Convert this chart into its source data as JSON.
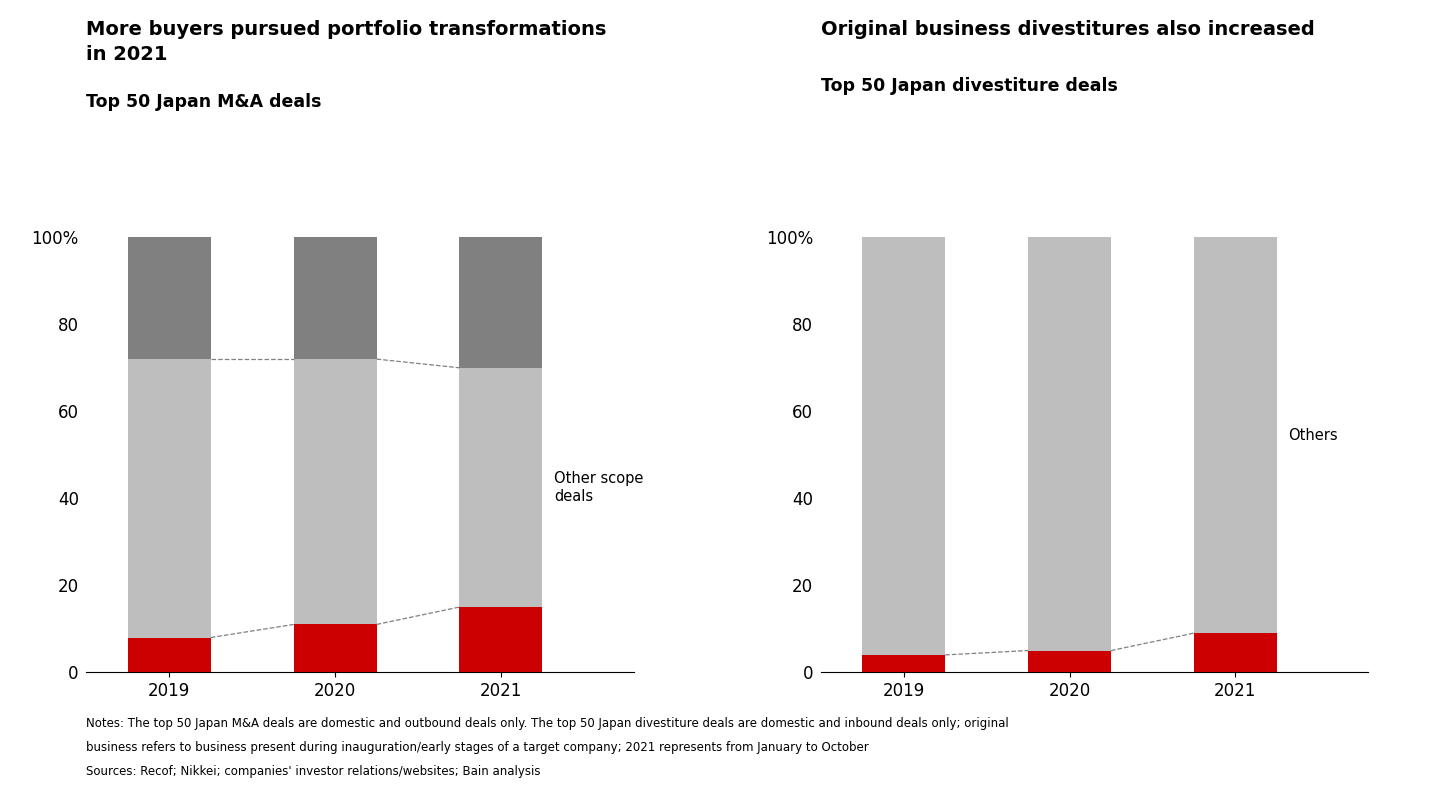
{
  "left_title_line1": "More buyers pursued portfolio transformations",
  "left_title_line2": "in 2021",
  "left_subtitle": "Top 50 Japan M&A deals",
  "right_title": "Original business divestitures also increased",
  "right_subtitle": "Top 50 Japan divestiture deals",
  "years": [
    "2019",
    "2020",
    "2021"
  ],
  "ma_data": {
    "portfolio_transformation": [
      8,
      11,
      15
    ],
    "other_scope_deals": [
      64,
      61,
      55
    ],
    "scale_deals": [
      28,
      28,
      30
    ]
  },
  "div_data": {
    "original_business": [
      4,
      5,
      9
    ],
    "others": [
      96,
      95,
      91
    ]
  },
  "colors": {
    "red": "#CC0000",
    "light_gray": "#BEBEBE",
    "dark_gray": "#808080",
    "white": "#FFFFFF",
    "background": "#FFFFFF"
  },
  "notes_line1": "Notes: The top 50 Japan M&A deals are domestic and outbound deals only. The top 50 Japan divestiture deals are domestic and inbound deals only; original",
  "notes_line2": "business refers to business present during inauguration/early stages of a target company; 2021 represents from January to October",
  "notes_line3": "Sources: Recof; Nikkei; companies' investor relations/websites; Bain analysis",
  "bar_width": 0.5
}
